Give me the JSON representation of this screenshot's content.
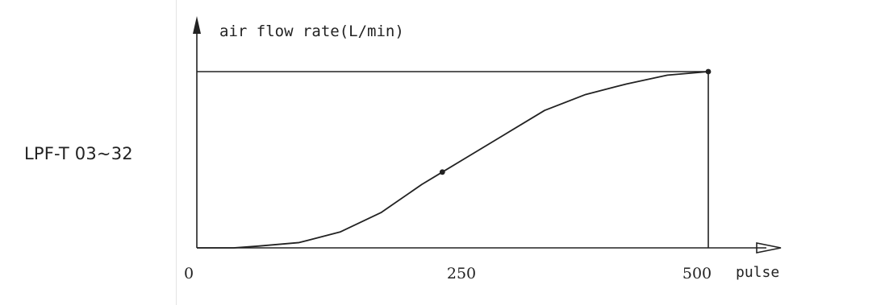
{
  "side_label": "LPF-T 03~32",
  "colors": {
    "ink": "#222222",
    "background": "#ffffff",
    "divider": "#e4e4e4"
  },
  "chart_data": {
    "type": "line",
    "title": "",
    "xlabel": "pulse",
    "ylabel": "air flow rate(L/min)",
    "x_ticks": [
      "0",
      "250",
      "500"
    ],
    "xlim": [
      0,
      500
    ],
    "ylim": [
      0,
      1
    ],
    "grid": false,
    "series": [
      {
        "x": [
          0,
          36,
          60,
          100,
          140,
          180,
          220,
          240,
          260,
          300,
          340,
          380,
          420,
          460,
          500
        ],
        "y": [
          0,
          0.0,
          0.01,
          0.03,
          0.09,
          0.2,
          0.36,
          0.43,
          0.5,
          0.64,
          0.78,
          0.87,
          0.93,
          0.98,
          1.0
        ]
      }
    ],
    "markers": [
      {
        "x": 240,
        "y": 0.43
      },
      {
        "x": 500,
        "y": 1.0
      }
    ]
  }
}
